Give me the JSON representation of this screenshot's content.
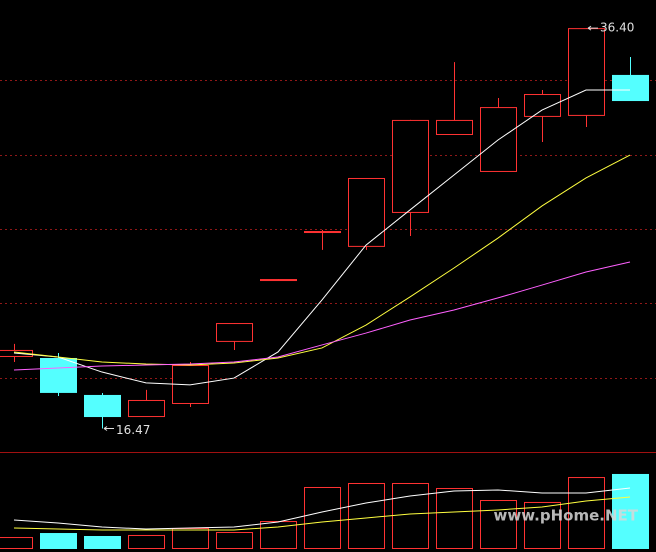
{
  "chart_data": {
    "type": "candlestick",
    "open": [
      20.08,
      19.98,
      18.14,
      17.09,
      17.74,
      20.83,
      23.86,
      26.25,
      25.56,
      27.25,
      31.13,
      29.29,
      32.03,
      32.08,
      34.07
    ],
    "high": [
      20.68,
      20.23,
      18.24,
      18.39,
      19.78,
      21.72,
      23.91,
      26.35,
      28.94,
      31.83,
      34.71,
      32.92,
      33.32,
      36.4,
      34.96
    ],
    "low": [
      19.78,
      18.09,
      16.47,
      17.09,
      17.54,
      20.38,
      23.81,
      25.36,
      25.36,
      26.05,
      31.13,
      29.29,
      30.73,
      31.48,
      32.82
    ],
    "close": [
      20.38,
      18.29,
      17.09,
      17.89,
      19.63,
      21.72,
      23.91,
      26.3,
      28.94,
      31.83,
      31.83,
      32.47,
      33.12,
      36.4,
      32.82
    ],
    "volume": [
      11.8,
      16.1,
      12.9,
      14.0,
      21.5,
      17.2,
      29.0,
      65.6,
      69.9,
      69.9,
      64.5,
      51.6,
      49.5,
      76.3,
      79.6
    ],
    "up_color": "#ff3232",
    "down_color": "#54ffff",
    "ma": [
      {
        "color": "#ffffff",
        "values": [
          20.23,
          20.03,
          19.28,
          18.74,
          18.64,
          18.98,
          20.28,
          22.87,
          25.6,
          27.35,
          29.09,
          30.83,
          32.32,
          33.32,
          33.32
        ]
      },
      {
        "color": "#ffff40",
        "values": [
          20.28,
          20.03,
          19.78,
          19.68,
          19.63,
          19.73,
          19.98,
          20.48,
          21.62,
          23.02,
          24.46,
          25.95,
          27.55,
          28.94,
          30.08
        ]
      },
      {
        "color": "#ff60ff",
        "values": [
          19.38,
          19.48,
          19.58,
          19.63,
          19.68,
          19.78,
          20.03,
          20.63,
          21.22,
          21.87,
          22.37,
          22.97,
          23.61,
          24.26,
          24.76
        ]
      }
    ],
    "volume_ma": [
      {
        "color": "#ffffff",
        "values": [
          30.1,
          26.9,
          22.6,
          20.4,
          21.5,
          22.6,
          28.0,
          38.7,
          48.4,
          55.9,
          61.3,
          62.4,
          59.1,
          59.1,
          64.5
        ]
      },
      {
        "color": "#ffff40",
        "values": [
          21.5,
          20.4,
          19.4,
          19.4,
          19.4,
          19.4,
          22.6,
          28.0,
          32.3,
          36.6,
          38.7,
          40.9,
          44.1,
          50.5,
          54.8
        ]
      }
    ],
    "ylim": [
      15.3,
      37.8
    ],
    "yticks": [
      18.98,
      22.72,
      26.4,
      30.08,
      33.82
    ],
    "volume_lim": [
      0,
      100
    ],
    "grid": true,
    "high_label": "36.40",
    "low_label": "16.47",
    "watermark": "www.pHome.NET"
  }
}
